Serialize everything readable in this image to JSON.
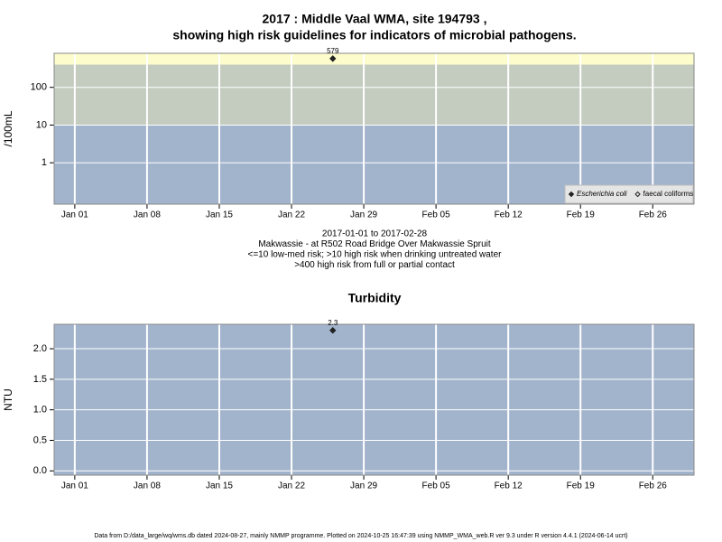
{
  "chart_data": [
    {
      "type": "scatter",
      "title": [
        "2017 : Middle Vaal WMA, site 194793 ,",
        "showing high risk guidelines for indicators of microbial pathogens."
      ],
      "ylabel": "/100mL",
      "notes": [
        "2017-01-01 to 2017-02-28",
        "Makwassie - at R502 Road Bridge Over Makwassie Spruit",
        "<=10 low-med risk; >10 high risk when drinking untreated water",
        ">400 high risk from full or partial contact"
      ],
      "log_y": true,
      "xlim": [
        "2016-12-30",
        "2017-03-02"
      ],
      "xticks": [
        {
          "value": "2017-01-01",
          "label": "Jan 01"
        },
        {
          "value": "2017-01-08",
          "label": "Jan 08"
        },
        {
          "value": "2017-01-15",
          "label": "Jan 15"
        },
        {
          "value": "2017-01-22",
          "label": "Jan 22"
        },
        {
          "value": "2017-01-29",
          "label": "Jan 29"
        },
        {
          "value": "2017-02-05",
          "label": "Feb 05"
        },
        {
          "value": "2017-02-12",
          "label": "Feb 12"
        },
        {
          "value": "2017-02-19",
          "label": "Feb 19"
        },
        {
          "value": "2017-02-26",
          "label": "Feb 26"
        }
      ],
      "ylim": [
        0.08,
        800
      ],
      "yticks": [
        1,
        10,
        100
      ],
      "background": "#a2b4cc",
      "bands": [
        {
          "min": 10,
          "max": 400,
          "color": "#c4ccc0"
        },
        {
          "min": 400,
          "color": "#fdfccc"
        }
      ],
      "grid": true,
      "legend": "lower right",
      "series": [
        {
          "name": "Escherichia coli",
          "color": "#222222",
          "marker": "filled",
          "x": [
            "2017-01-26"
          ],
          "values": [
            579
          ]
        },
        {
          "name": "faecal coliforms",
          "color": "#222222",
          "marker": "open",
          "x": [],
          "values": []
        }
      ]
    },
    {
      "type": "scatter",
      "title": [
        "Turbidity"
      ],
      "ylabel": "NTU",
      "log_y": false,
      "xlim": [
        "2016-12-30",
        "2017-03-02"
      ],
      "xticks": [
        {
          "value": "2017-01-01",
          "label": "Jan 01"
        },
        {
          "value": "2017-01-08",
          "label": "Jan 08"
        },
        {
          "value": "2017-01-15",
          "label": "Jan 15"
        },
        {
          "value": "2017-01-22",
          "label": "Jan 22"
        },
        {
          "value": "2017-01-29",
          "label": "Jan 29"
        },
        {
          "value": "2017-02-05",
          "label": "Feb 05"
        },
        {
          "value": "2017-02-12",
          "label": "Feb 12"
        },
        {
          "value": "2017-02-19",
          "label": "Feb 19"
        },
        {
          "value": "2017-02-26",
          "label": "Feb 26"
        }
      ],
      "ylim": [
        -0.07,
        2.4
      ],
      "yticks": [
        {
          "value": 0,
          "label": "0.0"
        },
        0.5,
        {
          "value": 1,
          "label": "1.0"
        },
        1.5,
        {
          "value": 2,
          "label": "2.0"
        }
      ],
      "background": "#a2b4cc",
      "grid": true,
      "series": [
        {
          "name": "Turbidity",
          "color": "#222222",
          "marker": "filled",
          "x": [
            "2017-01-26"
          ],
          "values": [
            2.3
          ]
        }
      ]
    }
  ],
  "footer": "Data from D:/data_large/wq/wms.db dated 2024-08-27, mainly NMMP programme. Plotted on 2024-10-25 16:47:39 using NMMP_WMA_web.R ver 9.3 under R version 4.4.1 (2024-06-14 ucrt)"
}
